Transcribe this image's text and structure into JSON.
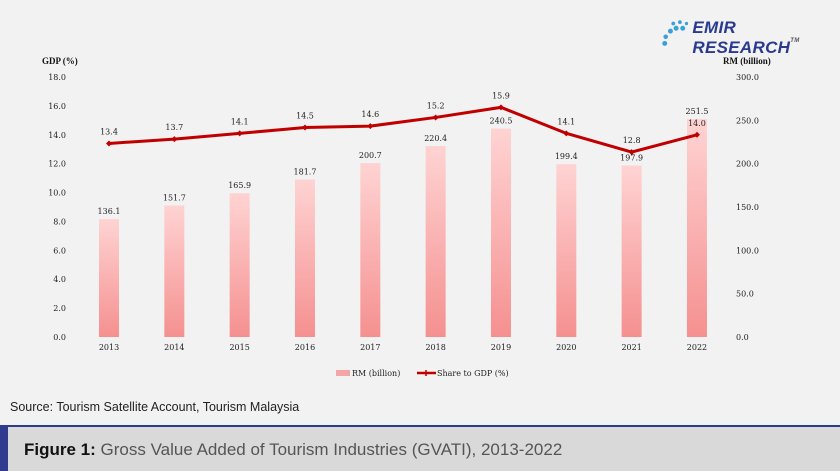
{
  "logo": {
    "text": "EMIR RESEARCH",
    "tm": "TM"
  },
  "chart_data": {
    "type": "bar+line",
    "categories": [
      "2013",
      "2014",
      "2015",
      "2016",
      "2017",
      "2018",
      "2019",
      "2020",
      "2021",
      "2022"
    ],
    "series": [
      {
        "name": "RM (billion)",
        "type": "bar",
        "axis": "right",
        "color": "#f4a6a6",
        "values": [
          136.1,
          151.7,
          165.9,
          181.7,
          200.7,
          220.4,
          240.5,
          199.4,
          197.9,
          251.5
        ]
      },
      {
        "name": "Share to GDP (%)",
        "type": "line",
        "axis": "left",
        "color": "#c00000",
        "values": [
          13.4,
          13.7,
          14.1,
          14.5,
          14.6,
          15.2,
          15.9,
          14.1,
          12.8,
          14.0
        ]
      }
    ],
    "ylabel_left": "GDP (%)",
    "ylabel_right": "RM (billion)",
    "ylim_left": [
      0,
      18
    ],
    "ylim_right": [
      0,
      300
    ],
    "yticks_left": [
      "0.0",
      "2.0",
      "4.0",
      "6.0",
      "8.0",
      "10.0",
      "12.0",
      "14.0",
      "16.0",
      "18.0"
    ],
    "yticks_right": [
      "0.0",
      "50.0",
      "100.0",
      "150.0",
      "200.0",
      "250.0",
      "300.0"
    ],
    "grid": false,
    "legend": "bottom"
  },
  "source": "Source: Tourism Satellite Account, Tourism Malaysia",
  "figure": {
    "label": "Figure 1:",
    "caption": "Gross Value Added of Tourism Industries (GVATI), 2013-2022"
  }
}
